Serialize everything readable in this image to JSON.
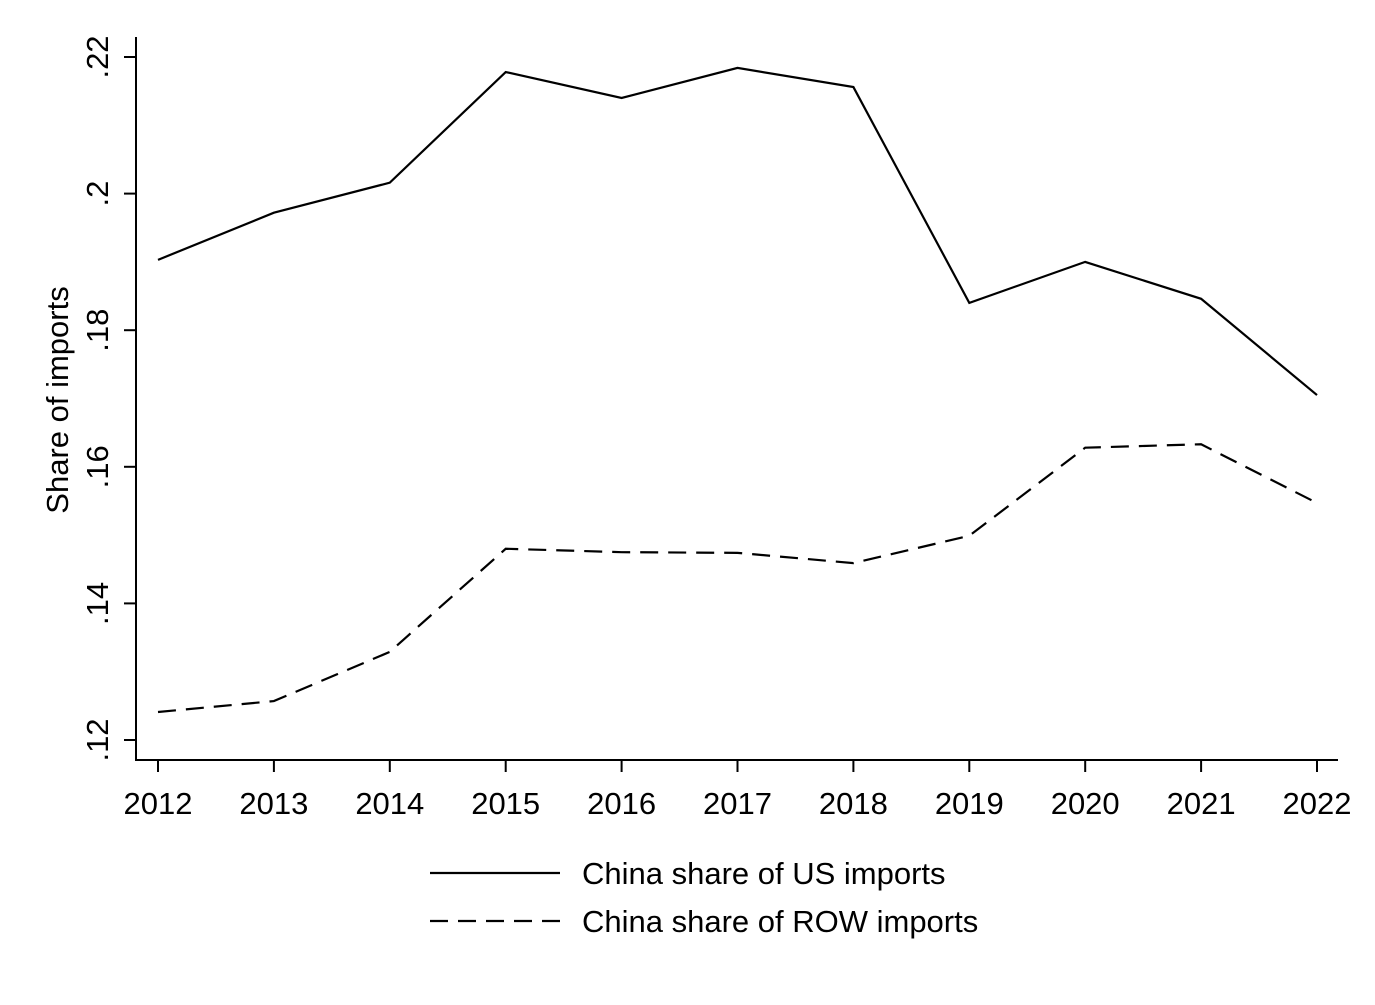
{
  "chart_data": {
    "type": "line",
    "title": "",
    "xlabel": "",
    "ylabel": "Share of imports",
    "x": [
      2012,
      2013,
      2014,
      2015,
      2016,
      2017,
      2018,
      2019,
      2020,
      2021,
      2022
    ],
    "x_tick_labels": [
      "2012",
      "2013",
      "2014",
      "2015",
      "2016",
      "2017",
      "2018",
      "2019",
      "2020",
      "2021",
      "2022"
    ],
    "y_ticks": [
      0.12,
      0.14,
      0.16,
      0.18,
      0.2,
      0.22
    ],
    "y_tick_labels": [
      ".12",
      ".14",
      ".16",
      ".18",
      ".2",
      ".22"
    ],
    "ylim": [
      0.117,
      0.223
    ],
    "grid": false,
    "legend_placement": "bottom",
    "series": [
      {
        "name": "China share of US imports",
        "style": "solid",
        "color": "#000000",
        "values": [
          0.1903,
          0.1972,
          0.2016,
          0.2178,
          0.214,
          0.2184,
          0.2156,
          0.184,
          0.19,
          0.1846,
          0.1705
        ]
      },
      {
        "name": "China share of ROW imports",
        "style": "dashed",
        "color": "#000000",
        "values": [
          0.1241,
          0.1257,
          0.1329,
          0.148,
          0.1475,
          0.1474,
          0.1459,
          0.1499,
          0.1628,
          0.1633,
          0.1547
        ]
      }
    ]
  }
}
